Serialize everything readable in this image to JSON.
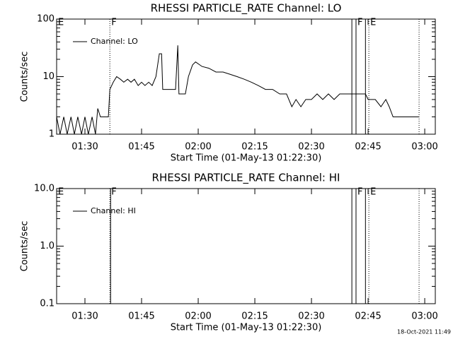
{
  "chart_data": [
    {
      "type": "line",
      "title": "RHESSI PARTICLE_RATE Channel: LO",
      "x_label": "Start Time (01-May-13 01:22:30)",
      "y_label": "Counts/sec",
      "log_y": true,
      "xlim": [
        82.5,
        182.8
      ],
      "ylim": [
        1,
        100
      ],
      "yticks": [
        1,
        10,
        100
      ],
      "xticks": [
        {
          "value": 90,
          "label": "01:30"
        },
        {
          "value": 105,
          "label": "01:45"
        },
        {
          "value": 120,
          "label": "02:00"
        },
        {
          "value": 135,
          "label": "02:15"
        },
        {
          "value": 150,
          "label": "02:30"
        },
        {
          "value": 165,
          "label": "02:45"
        },
        {
          "value": 180,
          "label": "03:00"
        }
      ],
      "flags": [
        {
          "x": 82.5,
          "label": "E"
        },
        {
          "x": 96.6,
          "label": "F"
        },
        {
          "x": 161.8,
          "label": "F"
        },
        {
          "x": 165.2,
          "label": "E"
        }
      ],
      "vlines": [
        {
          "x": 96.6,
          "style": "dotted"
        },
        {
          "x": 160.7,
          "style": "solid"
        },
        {
          "x": 161.8,
          "style": "solid"
        },
        {
          "x": 164.3,
          "style": "solid"
        },
        {
          "x": 165.2,
          "style": "dotted"
        },
        {
          "x": 178.5,
          "style": "dotted"
        }
      ],
      "series": [
        {
          "name": "Channel: LO",
          "color": "#000000",
          "x": [
            82.5,
            83.4,
            84.4,
            85.3,
            86.3,
            87.2,
            88.1,
            89.1,
            90.0,
            90.9,
            91.9,
            92.8,
            93.4,
            94.1,
            96.2,
            96.6,
            97.5,
            98.4,
            99.4,
            100.3,
            101.3,
            102.2,
            103.1,
            104.1,
            105.0,
            105.9,
            106.9,
            107.8,
            108.8,
            109.7,
            110.3,
            110.6,
            112.5,
            114.0,
            114.6,
            114.9,
            116.6,
            117.4,
            118.5,
            119.3,
            121.0,
            122.8,
            124.7,
            126.6,
            128.4,
            130.3,
            132.2,
            134.1,
            135.9,
            137.8,
            139.7,
            141.6,
            143.4,
            144.8,
            145.9,
            147.2,
            148.5,
            150.0,
            151.5,
            153.0,
            154.5,
            156.0,
            157.5,
            159.4,
            160.7,
            161.8,
            164.3,
            165.0,
            166.9,
            168.4,
            169.7,
            170.6,
            171.6,
            178.5
          ],
          "values": [
            2,
            1,
            2,
            1,
            2,
            1,
            2,
            1,
            2,
            1,
            2,
            1,
            2.8,
            2,
            2,
            6,
            8,
            10,
            9,
            8,
            9,
            8,
            9,
            7,
            8,
            7,
            8,
            7,
            10,
            25,
            25,
            6,
            6,
            6,
            35,
            5,
            5,
            10,
            16,
            18,
            15,
            14,
            12,
            12,
            11,
            10,
            9,
            8,
            7,
            6,
            6,
            5,
            5,
            3,
            4,
            3,
            4,
            4,
            5,
            4,
            5,
            4,
            5,
            5,
            5,
            5,
            5,
            4,
            4,
            3,
            4,
            3,
            2,
            2
          ]
        }
      ]
    },
    {
      "type": "line",
      "title": "RHESSI PARTICLE_RATE Channel: HI",
      "x_label": "Start Time (01-May-13 01:22:30)",
      "y_label": "Counts/sec",
      "log_y": true,
      "xlim": [
        82.5,
        182.8
      ],
      "ylim": [
        0.1,
        10
      ],
      "yticks": [
        {
          "value": 0.1,
          "label": "0.1"
        },
        {
          "value": 1,
          "label": "1.0"
        },
        {
          "value": 10,
          "label": "10.0"
        }
      ],
      "xticks": [
        {
          "value": 90,
          "label": "01:30"
        },
        {
          "value": 105,
          "label": "01:45"
        },
        {
          "value": 120,
          "label": "02:00"
        },
        {
          "value": 135,
          "label": "02:15"
        },
        {
          "value": 150,
          "label": "02:30"
        },
        {
          "value": 165,
          "label": "02:45"
        },
        {
          "value": 180,
          "label": "03:00"
        }
      ],
      "flags": [
        {
          "x": 82.5,
          "label": "E"
        },
        {
          "x": 96.6,
          "label": "F"
        },
        {
          "x": 161.8,
          "label": "F"
        },
        {
          "x": 165.2,
          "label": "E"
        }
      ],
      "vlines": [
        {
          "x": 96.6,
          "style": "dotted"
        },
        {
          "x": 96.8,
          "style": "solid"
        },
        {
          "x": 160.7,
          "style": "solid"
        },
        {
          "x": 161.8,
          "style": "solid"
        },
        {
          "x": 164.3,
          "style": "solid"
        },
        {
          "x": 165.2,
          "style": "dotted"
        },
        {
          "x": 178.5,
          "style": "dotted"
        }
      ],
      "series": [
        {
          "name": "Channel: HI",
          "color": "#000000",
          "x": [],
          "values": []
        }
      ]
    }
  ],
  "footer": "18-Oct-2021 11:49"
}
